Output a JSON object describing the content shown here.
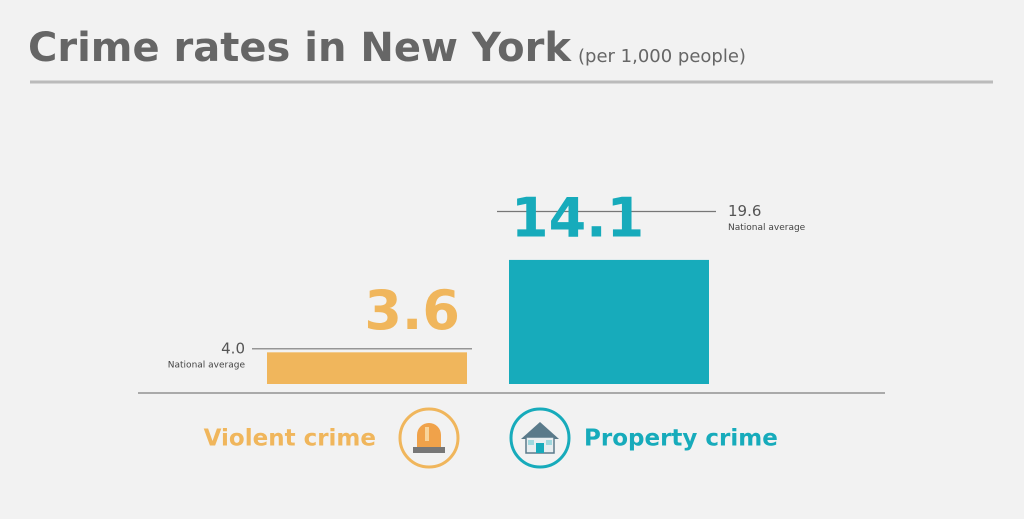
{
  "chart_data": {
    "type": "bar",
    "title": "Crime rates in New York",
    "subtitle": "(per 1,000 people)",
    "categories": [
      "Violent crime",
      "Property crime"
    ],
    "values": [
      3.6,
      14.1
    ],
    "colors": [
      "#f0b65c",
      "#17abbb"
    ],
    "reference": {
      "name": "National average",
      "values": [
        4.0,
        19.6
      ],
      "value_labels": [
        "4.0",
        "19.6"
      ]
    },
    "ylim": [
      0,
      20
    ]
  }
}
